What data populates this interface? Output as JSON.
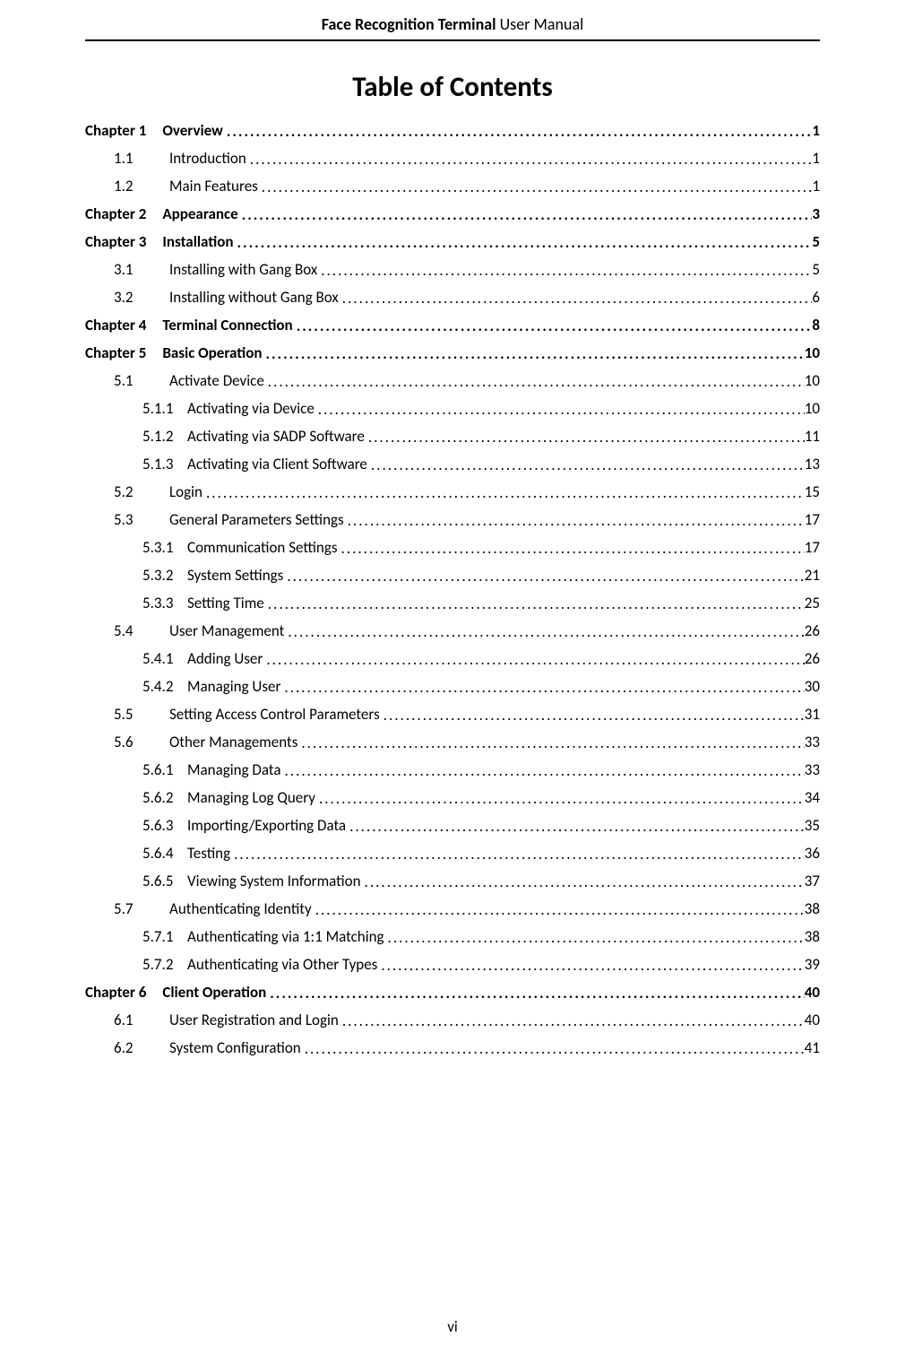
{
  "header": {
    "bold": "Face Recognition Terminal",
    "normal": "  User Manual"
  },
  "toc_title": "Table of Contents",
  "page_number": "vi",
  "entries": [
    {
      "level": "chapter",
      "num": "Chapter 1",
      "title": "Overview",
      "page": "1"
    },
    {
      "level": "l1",
      "num": "1.1",
      "title": "Introduction",
      "page": "1"
    },
    {
      "level": "l1",
      "num": "1.2",
      "title": "Main Features",
      "page": "1"
    },
    {
      "level": "chapter",
      "num": "Chapter 2",
      "title": "Appearance",
      "page": "3"
    },
    {
      "level": "chapter",
      "num": "Chapter 3",
      "title": "Installation",
      "page": "5"
    },
    {
      "level": "l1",
      "num": "3.1",
      "title": "Installing with Gang Box",
      "page": "5"
    },
    {
      "level": "l1",
      "num": "3.2",
      "title": "Installing without Gang Box",
      "page": "6"
    },
    {
      "level": "chapter",
      "num": "Chapter 4",
      "title": "Terminal Connection",
      "page": "8"
    },
    {
      "level": "chapter",
      "num": "Chapter 5",
      "title": "Basic Operation",
      "page": "10"
    },
    {
      "level": "l1",
      "num": "5.1",
      "title": "Activate Device",
      "page": "10"
    },
    {
      "level": "l2",
      "num": "5.1.1",
      "title": "Activating via Device",
      "page": "10"
    },
    {
      "level": "l2",
      "num": "5.1.2",
      "title": "Activating via SADP Software",
      "page": "11"
    },
    {
      "level": "l2",
      "num": "5.1.3",
      "title": "Activating via Client Software",
      "page": "13"
    },
    {
      "level": "l1",
      "num": "5.2",
      "title": "Login",
      "page": "15"
    },
    {
      "level": "l1",
      "num": "5.3",
      "title": "General Parameters Settings",
      "page": "17"
    },
    {
      "level": "l2",
      "num": "5.3.1",
      "title": "Communication Settings",
      "page": "17"
    },
    {
      "level": "l2",
      "num": "5.3.2",
      "title": "System Settings",
      "page": "21"
    },
    {
      "level": "l2",
      "num": "5.3.3",
      "title": "Setting Time",
      "page": "25"
    },
    {
      "level": "l1",
      "num": "5.4",
      "title": "User Management",
      "page": "26"
    },
    {
      "level": "l2",
      "num": "5.4.1",
      "title": "Adding User",
      "page": "26"
    },
    {
      "level": "l2",
      "num": "5.4.2",
      "title": "Managing User",
      "page": "30"
    },
    {
      "level": "l1",
      "num": "5.5",
      "title": "Setting Access Control Parameters",
      "page": "31"
    },
    {
      "level": "l1",
      "num": "5.6",
      "title": "Other Managements",
      "page": "33"
    },
    {
      "level": "l2",
      "num": "5.6.1",
      "title": "Managing Data",
      "page": "33"
    },
    {
      "level": "l2",
      "num": "5.6.2",
      "title": "Managing Log Query",
      "page": "34"
    },
    {
      "level": "l2",
      "num": "5.6.3",
      "title": "Importing/Exporting Data",
      "page": "35"
    },
    {
      "level": "l2",
      "num": "5.6.4",
      "title": "Testing",
      "page": "36"
    },
    {
      "level": "l2",
      "num": "5.6.5",
      "title": "Viewing System Information",
      "page": "37"
    },
    {
      "level": "l1",
      "num": "5.7",
      "title": "Authenticating Identity",
      "page": "38"
    },
    {
      "level": "l2",
      "num": "5.7.1",
      "title": "Authenticating via 1:1 Matching",
      "page": "38"
    },
    {
      "level": "l2",
      "num": "5.7.2",
      "title": "Authenticating via Other Types",
      "page": "39"
    },
    {
      "level": "chapter",
      "num": "Chapter 6",
      "title": "Client Operation",
      "page": "40"
    },
    {
      "level": "l1",
      "num": "6.1",
      "title": "User Registration and Login",
      "page": "40"
    },
    {
      "level": "l1",
      "num": "6.2",
      "title": "System Configuration",
      "page": "41"
    }
  ]
}
